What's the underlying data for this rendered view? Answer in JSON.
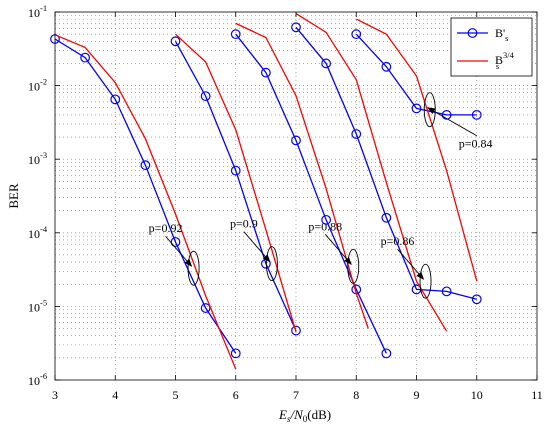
{
  "chart_data": {
    "type": "line",
    "title": "",
    "xlabel_main": "E",
    "xlabel_sub1": "s",
    "xlabel_mid": "/N",
    "xlabel_sub2": "0",
    "xlabel_tail": "(dB)",
    "ylabel": "BER",
    "xlim": [
      3,
      11
    ],
    "ylim": [
      1e-06,
      0.1
    ],
    "yscale": "log",
    "grid": true,
    "legend_position": "top-right",
    "x_ticks": [
      "3",
      "4",
      "5",
      "6",
      "7",
      "8",
      "9",
      "10",
      "11"
    ],
    "y_ticks": [
      {
        "base": "10",
        "exp": "-1"
      },
      {
        "base": "10",
        "exp": "-2"
      },
      {
        "base": "10",
        "exp": "-3"
      },
      {
        "base": "10",
        "exp": "-4"
      },
      {
        "base": "10",
        "exp": "-5"
      },
      {
        "base": "10",
        "exp": "-6"
      }
    ],
    "legend": [
      {
        "label": "B'",
        "sub": "s",
        "sup": "",
        "color": "#0000ff",
        "marker": "circle"
      },
      {
        "label": "B",
        "sub": "s",
        "sup": "3/4",
        "color": "#ff0000",
        "marker": "none"
      }
    ],
    "series": [
      {
        "group": "p=0.92",
        "style": "blue",
        "x": [
          3.0,
          3.5,
          4.0,
          4.5,
          5.0,
          5.5,
          6.0
        ],
        "y": [
          0.043,
          0.024,
          0.0065,
          0.00083,
          7.5e-05,
          9.5e-06,
          2.3e-06
        ]
      },
      {
        "group": "p=0.92",
        "style": "red",
        "x": [
          3.0,
          3.5,
          4.0,
          4.5,
          5.0,
          5.5,
          6.0
        ],
        "y": [
          0.049,
          0.033,
          0.011,
          0.0019,
          0.00018,
          1.4e-05,
          1.4e-06
        ]
      },
      {
        "group": "p=0.9",
        "style": "blue",
        "x": [
          5.0,
          5.5,
          6.0,
          6.5,
          7.0
        ],
        "y": [
          0.04,
          0.0072,
          0.0007,
          3.8e-05,
          4.7e-06
        ]
      },
      {
        "group": "p=0.9",
        "style": "red",
        "x": [
          5.0,
          5.5,
          6.0,
          6.5,
          7.0
        ],
        "y": [
          0.05,
          0.021,
          0.0025,
          0.00011,
          4.5e-06
        ]
      },
      {
        "group": "p=0.88",
        "style": "blue",
        "x": [
          6.0,
          6.5,
          7.0,
          7.5,
          8.0,
          8.5
        ],
        "y": [
          0.05,
          0.015,
          0.0018,
          0.00015,
          1.7e-05,
          2.3e-06
        ]
      },
      {
        "group": "p=0.88",
        "style": "red",
        "x": [
          6.0,
          6.5,
          7.0,
          7.5,
          8.0,
          8.2
        ],
        "y": [
          0.07,
          0.045,
          0.0073,
          0.0004,
          1.5e-05,
          5e-06
        ]
      },
      {
        "group": "p=0.86",
        "style": "blue",
        "x": [
          7.0,
          7.5,
          8.0,
          8.5,
          9.0,
          9.5,
          10.0
        ],
        "y": [
          0.062,
          0.02,
          0.0022,
          0.00016,
          1.7e-05,
          1.6e-05,
          1.25e-05
        ]
      },
      {
        "group": "p=0.86",
        "style": "red",
        "x": [
          7.0,
          7.5,
          8.0,
          8.5,
          9.0,
          9.5
        ],
        "y": [
          0.095,
          0.053,
          0.012,
          0.00048,
          2.2e-05,
          4.6e-06
        ]
      },
      {
        "group": "p=0.84",
        "style": "blue",
        "x": [
          8.0,
          8.5,
          9.0,
          9.5,
          10.0
        ],
        "y": [
          0.05,
          0.018,
          0.0049,
          0.004,
          0.004
        ]
      },
      {
        "group": "p=0.84",
        "style": "red",
        "x": [
          8.0,
          8.5,
          9.0,
          9.5,
          10.0
        ],
        "y": [
          0.08,
          0.05,
          0.0135,
          0.0007,
          2.2e-05
        ]
      }
    ],
    "annotations": [
      {
        "label": "p=0.92",
        "at_x": 5.3,
        "at_y": 3.3e-05
      },
      {
        "label": "p=0.9",
        "at_x": 6.6,
        "at_y": 3.8e-05
      },
      {
        "label": "p=0.88",
        "at_x": 7.95,
        "at_y": 3.5e-05
      },
      {
        "label": "p=0.86",
        "at_x": 9.15,
        "at_y": 2.2e-05
      },
      {
        "label": "p=0.84",
        "at_x": 9.22,
        "at_y": 0.0047
      }
    ]
  }
}
